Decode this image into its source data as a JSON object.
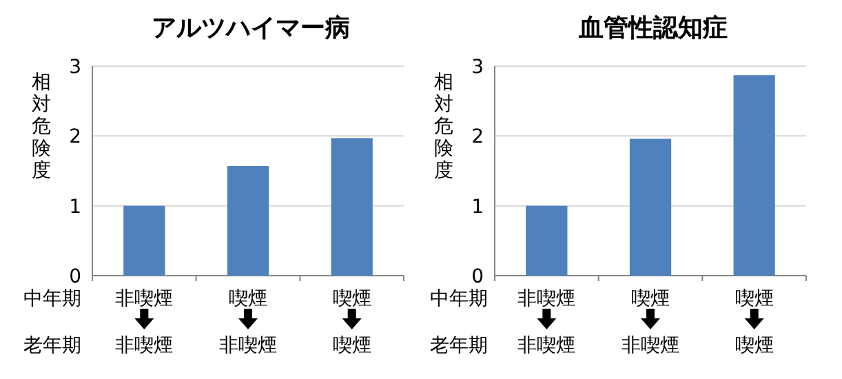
{
  "chart_data": [
    {
      "type": "bar",
      "title": "アルツハイマー病",
      "ylabel": "相対危険度",
      "categories": [
        "非喫煙",
        "喫煙",
        "喫煙"
      ],
      "values": [
        1,
        1.57,
        1.97
      ],
      "color": "#4f81bd",
      "ylim": [
        0,
        3
      ],
      "yticks": [
        0,
        1,
        2,
        3
      ],
      "grid": "y",
      "annotations": [
        "中年期",
        "老年期",
        "非喫煙",
        "非喫煙",
        "喫煙"
      ]
    },
    {
      "type": "bar",
      "title": "血管性認知症",
      "ylabel": "相対危険度",
      "categories": [
        "非喫煙",
        "喫煙",
        "喫煙"
      ],
      "values": [
        1,
        1.96,
        2.87
      ],
      "color": "#4f81bd",
      "ylim": [
        0,
        3
      ],
      "yticks": [
        0,
        1,
        2,
        3
      ],
      "grid": "y",
      "annotations": [
        "中年期",
        "老年期",
        "非喫煙",
        "非喫煙",
        "喫煙"
      ]
    }
  ]
}
